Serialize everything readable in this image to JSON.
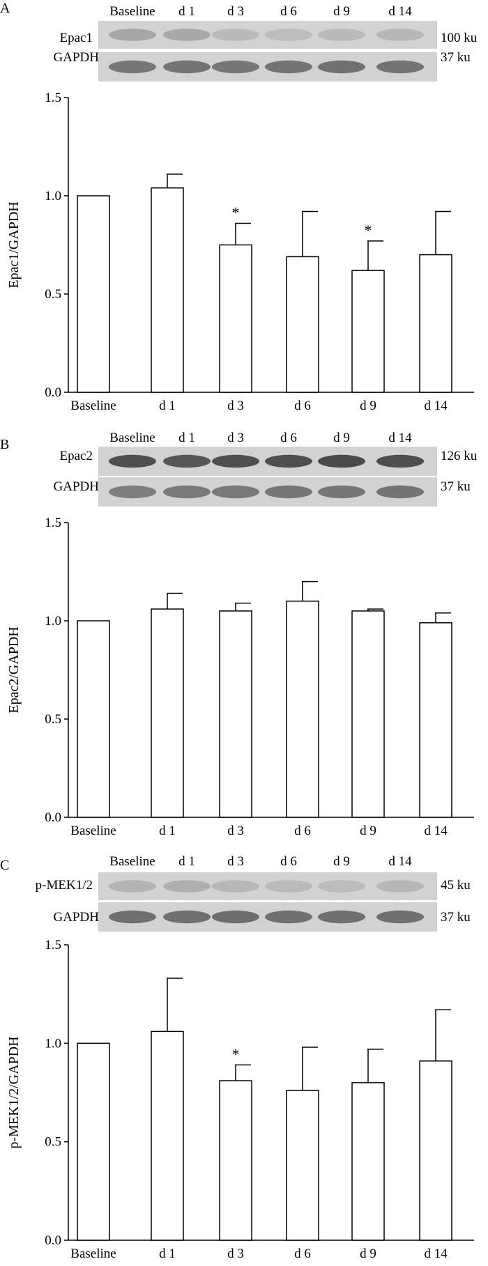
{
  "panels": [
    {
      "letter": "A",
      "blot": {
        "lanes": [
          "Baseline",
          "d 1",
          "d 3",
          "d 6",
          "d 9",
          "d 14"
        ],
        "rows": [
          {
            "label": "Epac1",
            "size": "100 ku",
            "band_intensity": [
              0.3,
              0.28,
              0.18,
              0.17,
              0.18,
              0.2
            ]
          },
          {
            "label": "GAPDH",
            "size": "37 ku",
            "band_intensity": [
              0.6,
              0.62,
              0.6,
              0.62,
              0.64,
              0.62
            ]
          }
        ]
      },
      "chart_data": {
        "type": "bar",
        "categories": [
          "Baseline",
          "d 1",
          "d 3",
          "d 6",
          "d 9",
          "d 14"
        ],
        "values": [
          1.0,
          1.04,
          0.75,
          0.69,
          0.62,
          0.7
        ],
        "errors": [
          0,
          0.07,
          0.11,
          0.23,
          0.15,
          0.22
        ],
        "significant": [
          false,
          false,
          true,
          false,
          true,
          false
        ],
        "significance_mark": "*",
        "ylabel": "Epac1/GAPDH",
        "ylim": [
          0,
          1.5
        ],
        "yticks": [
          "0.0",
          "0.5",
          "1.0",
          "1.5"
        ],
        "grid": false
      }
    },
    {
      "letter": "B",
      "blot": {
        "lanes": [
          "Baseline",
          "d 1",
          "d 3",
          "d 6",
          "d 9",
          "d 14"
        ],
        "rows": [
          {
            "label": "Epac2",
            "size": "126 ku",
            "band_intensity": [
              0.85,
              0.8,
              0.85,
              0.85,
              0.88,
              0.85
            ]
          },
          {
            "label": "GAPDH",
            "size": "37 ku",
            "band_intensity": [
              0.55,
              0.58,
              0.58,
              0.6,
              0.6,
              0.62
            ]
          }
        ]
      },
      "chart_data": {
        "type": "bar",
        "categories": [
          "Baseline",
          "d 1",
          "d 3",
          "d 6",
          "d 9",
          "d 14"
        ],
        "values": [
          1.0,
          1.06,
          1.05,
          1.1,
          1.05,
          0.99
        ],
        "errors": [
          0,
          0.08,
          0.04,
          0.1,
          0.01,
          0.05
        ],
        "significant": [
          false,
          false,
          false,
          false,
          false,
          false
        ],
        "significance_mark": "*",
        "ylabel": "Epac2/GAPDH",
        "ylim": [
          0,
          1.5
        ],
        "yticks": [
          "0.0",
          "0.5",
          "1.0",
          "1.5"
        ],
        "grid": false
      }
    },
    {
      "letter": "C",
      "blot": {
        "lanes": [
          "Baseline",
          "d 1",
          "d 3",
          "d 6",
          "d 9",
          "d 14"
        ],
        "rows": [
          {
            "label": "p-MEK1/2",
            "size": "45 ku",
            "band_intensity": [
              0.22,
              0.25,
              0.2,
              0.18,
              0.17,
              0.2
            ]
          },
          {
            "label": "GAPDH",
            "size": "37 ku",
            "band_intensity": [
              0.65,
              0.65,
              0.66,
              0.64,
              0.64,
              0.64
            ]
          }
        ]
      },
      "chart_data": {
        "type": "bar",
        "categories": [
          "Baseline",
          "d 1",
          "d 3",
          "d 6",
          "d 9",
          "d 14"
        ],
        "values": [
          1.0,
          1.06,
          0.81,
          0.76,
          0.8,
          0.91
        ],
        "errors": [
          0,
          0.27,
          0.08,
          0.22,
          0.17,
          0.26
        ],
        "significant": [
          false,
          false,
          true,
          false,
          false,
          false
        ],
        "significance_mark": "*",
        "ylabel": "p-MEK1/2/GAPDH",
        "ylim": [
          0,
          1.5
        ],
        "yticks": [
          "0.0",
          "0.5",
          "1.0",
          "1.5"
        ],
        "grid": false
      }
    }
  ],
  "colors": {
    "bar_fill": "#ffffff",
    "axis": "#000000",
    "blot_background": "#d2d2d2",
    "band_dark": "#3a3a3a"
  }
}
